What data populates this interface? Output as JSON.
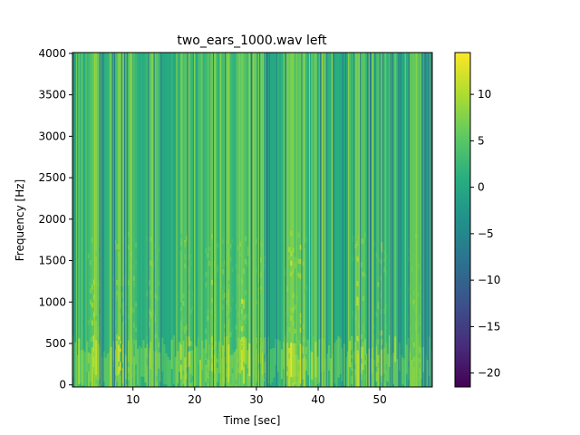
{
  "chart_data": {
    "type": "heatmap",
    "title": "two_ears_1000.wav left",
    "xlabel": "Time [sec]",
    "ylabel": "Frequency [Hz]",
    "xlim": [
      0.2,
      58.5
    ],
    "ylim": [
      -25,
      4010
    ],
    "xticks": [
      10,
      20,
      30,
      40,
      50
    ],
    "yticks": [
      0,
      500,
      1000,
      1500,
      2000,
      2500,
      3000,
      3500,
      4000
    ],
    "colormap": "viridis",
    "colorbar": {
      "range": [
        -21.5,
        14.5
      ],
      "ticks": [
        10,
        5,
        0,
        -5,
        -10,
        -15,
        -20
      ],
      "tick_labels": [
        "10",
        "5",
        "0",
        "−5",
        "−10",
        "−15",
        "−20"
      ]
    },
    "description_values": {
      "dominant_level_db": 0,
      "low_freq_band_hz": [
        0,
        600
      ],
      "energy_bursts_sec": [
        {
          "t": 3.5,
          "level": 10
        },
        {
          "t": 7.5,
          "level": 8
        },
        {
          "t": 9.5,
          "level": 9
        },
        {
          "t": 13,
          "level": 10
        },
        {
          "t": 18.5,
          "level": 9
        },
        {
          "t": 22.5,
          "level": 10
        },
        {
          "t": 25,
          "level": 9
        },
        {
          "t": 27.5,
          "level": 11
        },
        {
          "t": 30.5,
          "level": 9
        },
        {
          "t": 35.5,
          "level": 12
        },
        {
          "t": 37,
          "level": 10
        },
        {
          "t": 46.5,
          "level": 12
        },
        {
          "t": 50,
          "level": 9
        },
        {
          "t": 55.5,
          "level": 8
        }
      ]
    }
  }
}
